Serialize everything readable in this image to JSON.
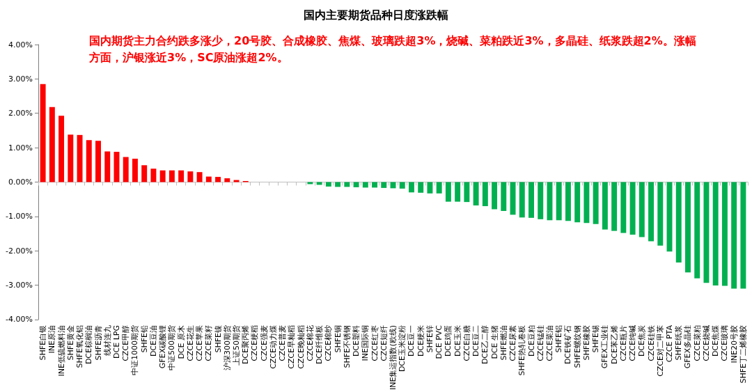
{
  "chart_data": {
    "type": "bar",
    "title": "国内主要期货品种日度涨跌幅",
    "annotations": [
      "国内期货主力合约跌多涨少，20号胶、合成橡胶、焦煤、玻璃跌超3%，烧碱、菜粕跌近3%，多晶硅、纸浆跌超2%。涨幅方面，沪银涨近3%，SC原油涨超2%。"
    ],
    "categories": [
      "SHFE白银",
      "INE原油",
      "INE低硫燃料油",
      "SHFE黄金",
      "SHFE氧化铝",
      "DCE棕榈油",
      "SHFE沥青",
      "线材连九",
      "DCE LPG",
      "CZCE甲醇",
      "中证1000期货",
      "SHFE铅",
      "DCE豆油",
      "GFEX碳酸锂",
      "中证500期货",
      "DCE 原木",
      "CZCE花生",
      "CZCE苹果",
      "CZCE菜籽",
      "SHFE镍",
      "沪深300期货",
      "上证50期货",
      "DCE聚丙烯",
      "CZCE粳稻",
      "CZCE强麦",
      "CZCE动力煤",
      "CZCE普麦",
      "CZCE早籼稻",
      "CZCE晚籼稻",
      "CZCE棉花",
      "DCE纤维板",
      "CZCE棉纱",
      "SHFE铜",
      "SHFE不锈钢",
      "DCE塑料",
      "INE国际铜",
      "CZCE红枣",
      "CZCE短纤",
      "INE集运指数(欧线)",
      "DCE玉米淀粉",
      "DCE豆一",
      "DCE粳米",
      "SHFE锌",
      "DCE PVC",
      "DCE鸡蛋",
      "DCE玉米",
      "CZCE白糖",
      "DCE豆二",
      "DCE乙二醇",
      "DCE 生猪",
      "SHFE燃油",
      "CZCE尿素",
      "SHFE热轧卷板",
      "DCE豆粕",
      "CZCE锰硅",
      "CZCE菜油",
      "SHFE铝",
      "DCE铁矿石",
      "SHFE螺纹钢",
      "SHFE橡胶",
      "SHFE锡",
      "GFEX工业硅",
      "DCE苯乙烯",
      "CZCE瓶片",
      "CZCE纯碱",
      "DCE焦炭",
      "CZCE硅铁",
      "CZCE对二甲苯",
      "CZCE PTA",
      "SHFE纸浆",
      "GFEX多晶硅",
      "CZCE菜粕",
      "CZCE烧碱",
      "DCE焦煤",
      "CZCE玻璃",
      "INE20号胶",
      "SHFE丁二烯橡胶"
    ],
    "values": [
      2.85,
      2.18,
      1.93,
      1.38,
      1.37,
      1.22,
      1.2,
      0.89,
      0.88,
      0.73,
      0.68,
      0.49,
      0.39,
      0.34,
      0.34,
      0.34,
      0.31,
      0.29,
      0.16,
      0.15,
      0.11,
      0.06,
      0.03,
      0,
      0,
      0,
      0,
      0,
      0,
      -0.06,
      -0.08,
      -0.13,
      -0.14,
      -0.14,
      -0.15,
      -0.16,
      -0.16,
      -0.17,
      -0.18,
      -0.19,
      -0.3,
      -0.31,
      -0.33,
      -0.33,
      -0.57,
      -0.57,
      -0.58,
      -0.68,
      -0.7,
      -0.79,
      -0.84,
      -0.95,
      -1.03,
      -1.04,
      -1.08,
      -1.11,
      -1.11,
      -1.13,
      -1.17,
      -1.19,
      -1.22,
      -1.38,
      -1.42,
      -1.48,
      -1.53,
      -1.6,
      -1.72,
      -1.85,
      -2.02,
      -2.34,
      -2.63,
      -2.8,
      -2.93,
      -3.01,
      -3.02,
      -3.1,
      -3.1
    ],
    "colors": [
      "#ff0000",
      "#ff0000",
      "#ff0000",
      "#ff0000",
      "#ff0000",
      "#ff0000",
      "#ff0000",
      "#ff0000",
      "#ff0000",
      "#ff0000",
      "#ff0000",
      "#ff0000",
      "#ff0000",
      "#ff0000",
      "#ff0000",
      "#ff0000",
      "#ff0000",
      "#ff0000",
      "#ff0000",
      "#ff0000",
      "#ff0000",
      "#ff0000",
      "#ff0000",
      "#ff0000",
      "#ff0000",
      "#ff0000",
      "#ff0000",
      "#ff0000",
      "#ff0000",
      "#00b050",
      "#00b050",
      "#00b050",
      "#00b050",
      "#00b050",
      "#00b050",
      "#00b050",
      "#00b050",
      "#00b050",
      "#00b050",
      "#00b050",
      "#00b050",
      "#00b050",
      "#00b050",
      "#00b050",
      "#00b050",
      "#00b050",
      "#00b050",
      "#00b050",
      "#00b050",
      "#00b050",
      "#00b050",
      "#00b050",
      "#00b050",
      "#00b050",
      "#00b050",
      "#00b050",
      "#00b050",
      "#00b050",
      "#00b050",
      "#00b050",
      "#00b050",
      "#00b050",
      "#00b050",
      "#00b050",
      "#00b050",
      "#00b050",
      "#00b050",
      "#00b050",
      "#00b050",
      "#00b050",
      "#00b050",
      "#00b050",
      "#00b050",
      "#00b050",
      "#00b050",
      "#00b050",
      "#00b050"
    ],
    "ylim": [
      -4,
      4
    ],
    "yticks": [
      {
        "value": -4,
        "label": "-4.00%"
      },
      {
        "value": -3,
        "label": "-3.00%"
      },
      {
        "value": -2,
        "label": "-2.00%"
      },
      {
        "value": -1,
        "label": "-1.00%"
      },
      {
        "value": 0,
        "label": "0.00%"
      },
      {
        "value": 1,
        "label": "1.00%"
      },
      {
        "value": 2,
        "label": "2.00%"
      },
      {
        "value": 3,
        "label": "3.00%"
      },
      {
        "value": 4,
        "label": "4.00%"
      }
    ]
  }
}
